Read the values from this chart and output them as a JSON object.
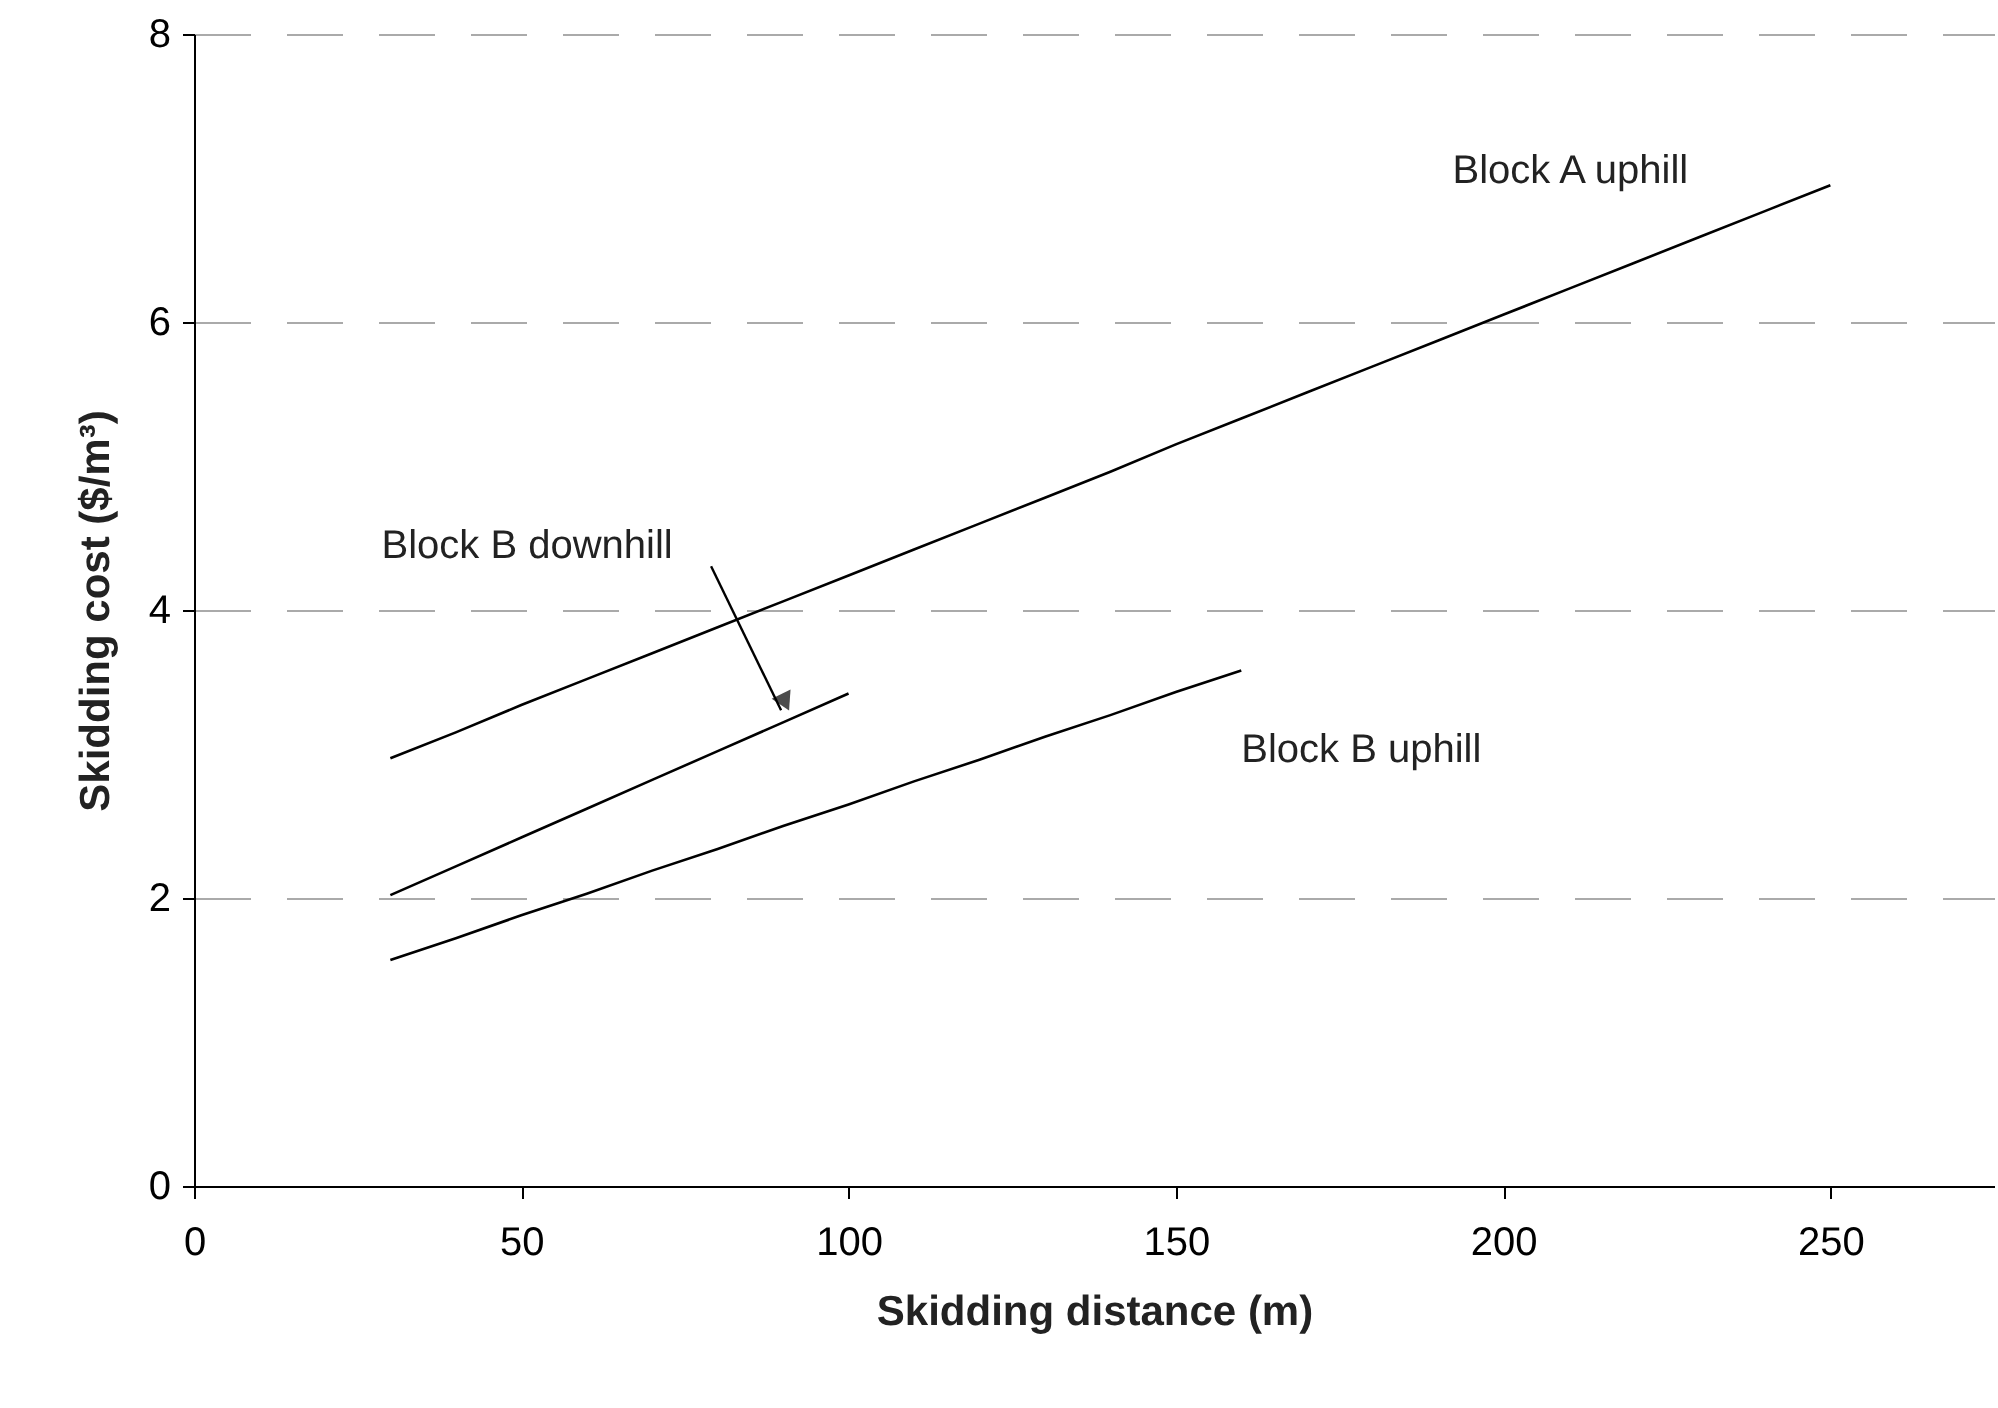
{
  "chart_data": {
    "type": "line",
    "xlabel": "Skidding distance (m)",
    "ylabel": "Skidding cost ($/m³)",
    "xlim": [
      0,
      275
    ],
    "xticks": [
      0,
      50,
      100,
      150,
      200,
      250
    ],
    "ylim": [
      0,
      8
    ],
    "yticks": [
      0,
      2,
      4,
      6,
      8
    ],
    "grid": "y",
    "legend": false,
    "marker": "none",
    "line_style": "solid",
    "series": [
      {
        "name": "Block A uphill",
        "color": "#000000",
        "x": [
          30,
          40,
          50,
          60,
          70,
          80,
          90,
          100,
          110,
          120,
          130,
          140,
          150,
          160,
          170,
          180,
          190,
          200,
          210,
          220,
          230,
          240,
          250
        ],
        "values": [
          2.97,
          3.15,
          3.34,
          3.52,
          3.7,
          3.88,
          4.06,
          4.24,
          4.42,
          4.6,
          4.78,
          4.96,
          5.15,
          5.33,
          5.51,
          5.69,
          5.87,
          6.05,
          6.23,
          6.41,
          6.59,
          6.77,
          6.95
        ]
      },
      {
        "name": "Block B downhill",
        "color": "#000000",
        "x": [
          30,
          40,
          50,
          60,
          70,
          80,
          90,
          100
        ],
        "values": [
          2.02,
          2.22,
          2.42,
          2.62,
          2.82,
          3.02,
          3.22,
          3.42
        ]
      },
      {
        "name": "Block B uphill",
        "color": "#000000",
        "x": [
          30,
          40,
          50,
          60,
          70,
          80,
          90,
          100,
          110,
          120,
          130,
          140,
          150,
          160
        ],
        "values": [
          1.57,
          1.72,
          1.88,
          2.03,
          2.19,
          2.34,
          2.5,
          2.65,
          2.81,
          2.96,
          3.12,
          3.27,
          3.43,
          3.58
        ]
      }
    ]
  }
}
